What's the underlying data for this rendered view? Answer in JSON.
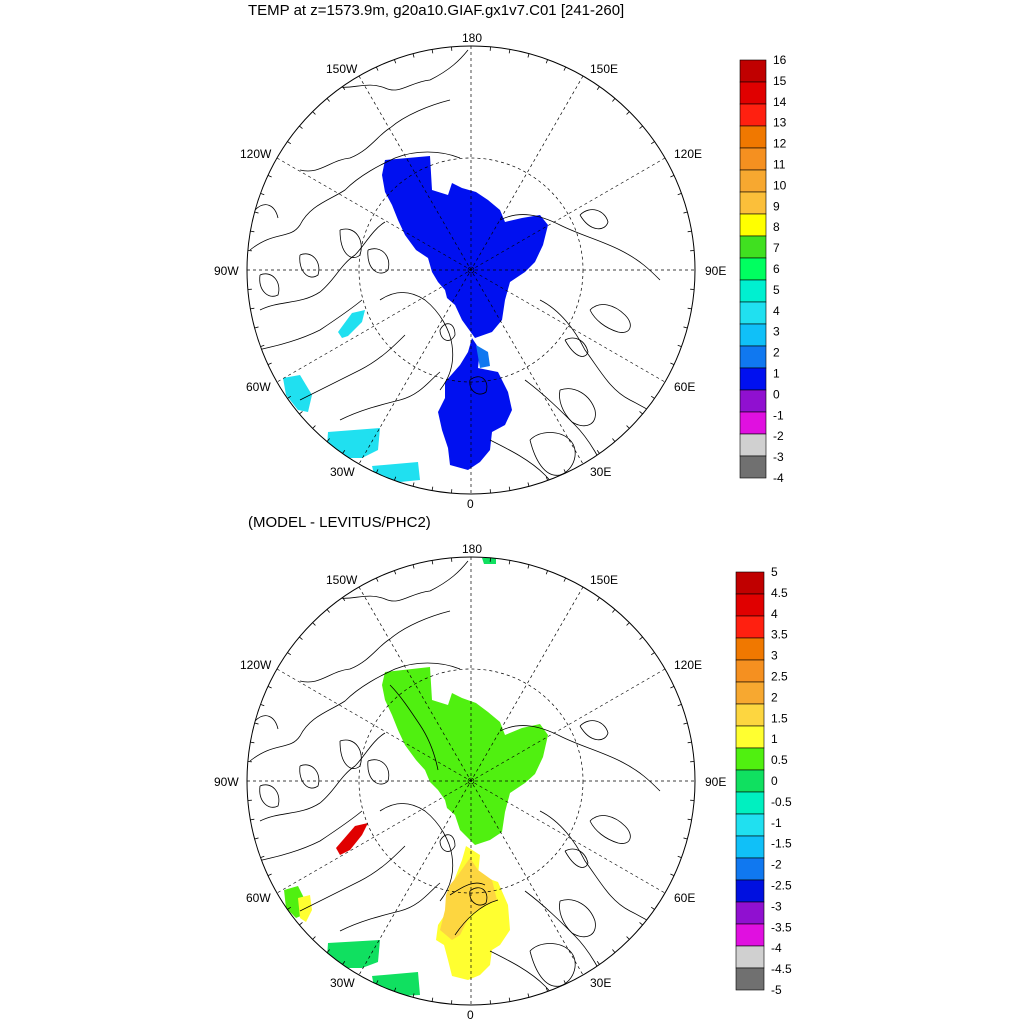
{
  "header": {
    "title": "TEMP at z=1573.9m, g20a10.GIAF.gx1v7.C01 [241-260]",
    "subtitle": "(MODEL - LEVITUS/PHC2)"
  },
  "map_labels": {
    "top": "180",
    "bottom": "0",
    "left": "90W",
    "right": "90E",
    "upper_left_1": "150W",
    "upper_left_2": "120W",
    "lower_left_1": "60W",
    "lower_left_2": "30W",
    "upper_right_1": "150E",
    "upper_right_2": "120E",
    "lower_right_1": "60E",
    "lower_right_2": "30E"
  },
  "colorbar_top": {
    "labels": [
      "16",
      "15",
      "14",
      "13",
      "12",
      "11",
      "10",
      "9",
      "8",
      "7",
      "6",
      "5",
      "4",
      "3",
      "2",
      "1",
      "0",
      "-1",
      "-2",
      "-3",
      "-4"
    ],
    "colors": [
      "#c00000",
      "#e00000",
      "#ff2010",
      "#f07800",
      "#f59020",
      "#f7a830",
      "#fbbf3a",
      "#ffff00",
      "#40e020",
      "#00ff60",
      "#00f0d0",
      "#20e0f0",
      "#10c0f8",
      "#1078f0",
      "#0010f0",
      "#9010d0",
      "#e010e0",
      "#d0d0d0",
      "#707070"
    ]
  },
  "colorbar_bottom": {
    "labels": [
      "5",
      "4.5",
      "4",
      "3.5",
      "3",
      "2.5",
      "2",
      "1.5",
      "1",
      "0.5",
      "0",
      "-0.5",
      "-1",
      "-1.5",
      "-2",
      "-2.5",
      "-3",
      "-3.5",
      "-4",
      "-4.5",
      "-5"
    ],
    "colors": [
      "#c00000",
      "#e00000",
      "#ff2010",
      "#f07800",
      "#f59020",
      "#f7a830",
      "#fdd640",
      "#ffff30",
      "#50f010",
      "#10e060",
      "#00f0c0",
      "#20e0f0",
      "#10c0f8",
      "#1078f0",
      "#0010e0",
      "#9010d0",
      "#e010e0",
      "#d0d0d0",
      "#707070"
    ]
  },
  "colors": {
    "top_field": "#0010f0",
    "top_cyan": "#20e0f0",
    "top_lightblue": "#1078f0",
    "diff_green": "#50f010",
    "diff_yellow": "#ffff30",
    "diff_orange": "#fdd640",
    "diff_red": "#e00000",
    "diff_lightgreen": "#10e060"
  }
}
